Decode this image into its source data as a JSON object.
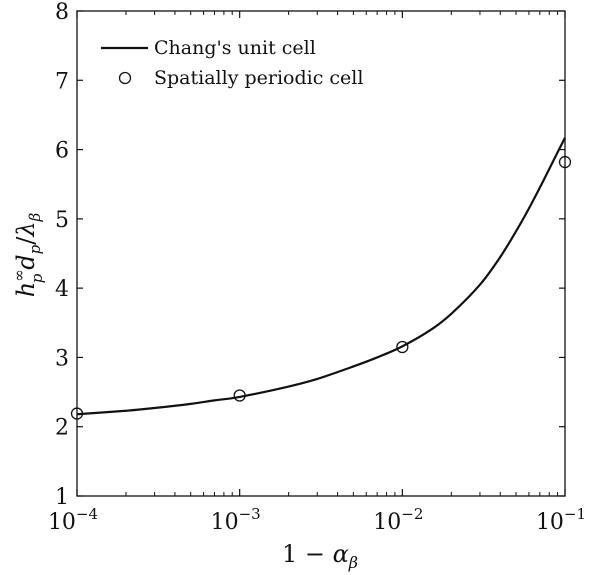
{
  "chart_data": {
    "type": "line",
    "xscale": "log",
    "xlim": [
      0.0001,
      0.1
    ],
    "ylim": [
      1,
      8
    ],
    "x_ticks": [
      {
        "value": 0.0001,
        "exp": "−4"
      },
      {
        "value": 0.001,
        "exp": "−3"
      },
      {
        "value": 0.01,
        "exp": "−2"
      },
      {
        "value": 0.1,
        "exp": "−1"
      }
    ],
    "y_ticks": [
      "1",
      "2",
      "3",
      "4",
      "5",
      "6",
      "7",
      "8"
    ],
    "xlabel": "1 − αβ",
    "ylabel": "h∞p dp/λβ",
    "grid": false,
    "legend_position": "top-left",
    "series": [
      {
        "name": "Chang's unit cell",
        "style": "solid-line",
        "color": "#111111",
        "x": [
          0.0001,
          0.0002,
          0.0003,
          0.0005,
          0.0007,
          0.001,
          0.002,
          0.003,
          0.005,
          0.007,
          0.01,
          0.015,
          0.02,
          0.03,
          0.04,
          0.05,
          0.06,
          0.07,
          0.08,
          0.09,
          0.1
        ],
        "y": [
          2.18,
          2.23,
          2.27,
          2.33,
          2.38,
          2.43,
          2.58,
          2.69,
          2.87,
          3.0,
          3.16,
          3.4,
          3.63,
          4.05,
          4.45,
          4.82,
          5.15,
          5.45,
          5.72,
          5.96,
          6.17
        ]
      },
      {
        "name": "Spatially periodic cell",
        "style": "open-circle",
        "color": "#111111",
        "x": [
          0.0001,
          0.001,
          0.01,
          0.1
        ],
        "y": [
          2.19,
          2.45,
          3.15,
          5.82
        ]
      }
    ]
  }
}
